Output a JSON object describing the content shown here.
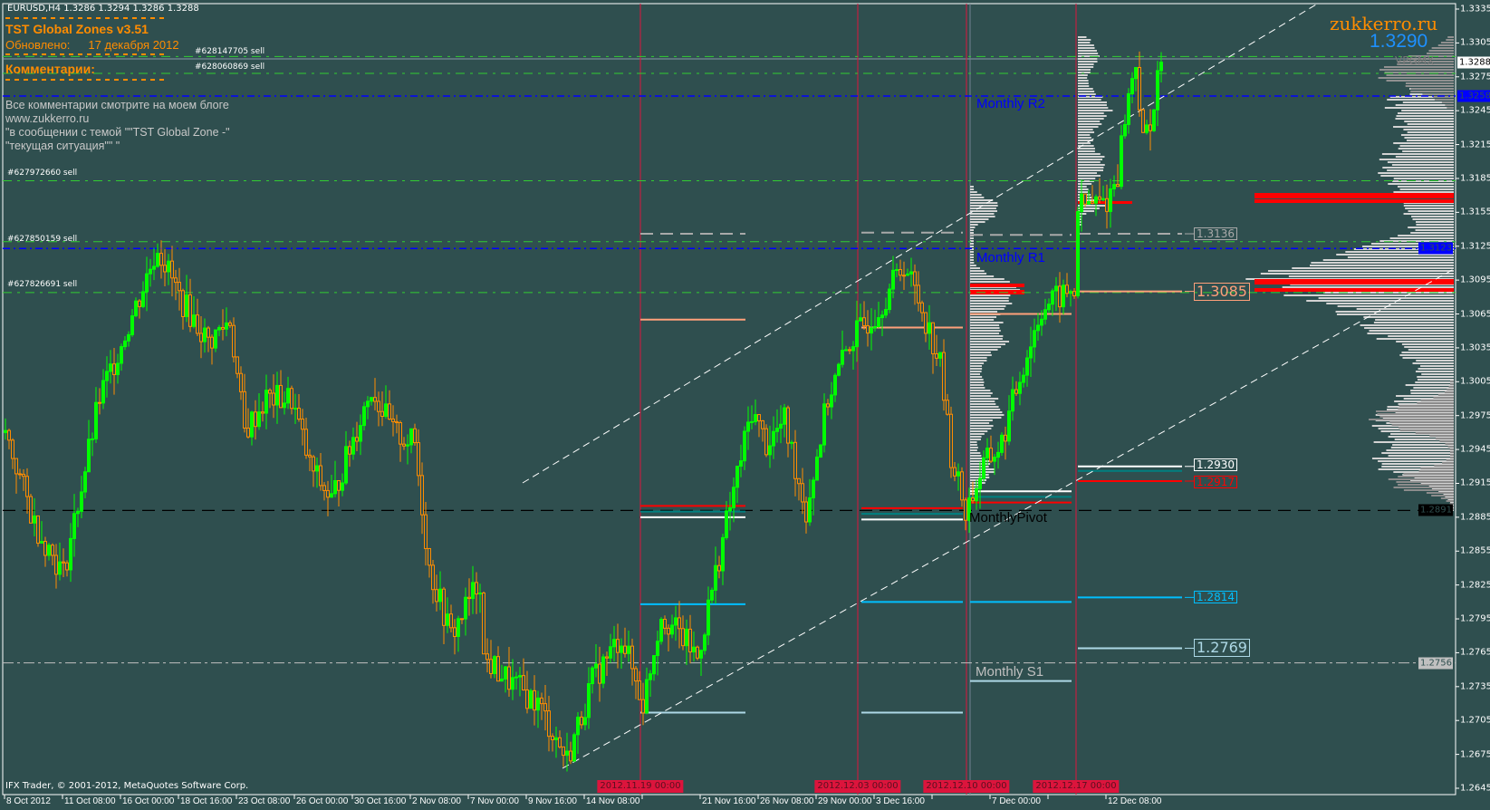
{
  "header": {
    "symbol_line": "EURUSD,H4  1.3286 1.3294 1.3286 1.3288"
  },
  "indicator": {
    "title": "TST Global Zones  v3.51",
    "updated_label": "Обновлено:",
    "updated_date": "17 декабря 2012",
    "comments_label": "Комментарии:",
    "notes": [
      "Все комментарии смотрите на моем блоге",
      "www.zukkerro.ru",
      "\"в сообщении с темой \"\"TST Global Zone -\"",
      "\"текущая ситуация\"\" \""
    ]
  },
  "orders": [
    {
      "label": "#628147705 sell",
      "price": 1.3293
    },
    {
      "label": "#628060869 sell",
      "price": 1.3278
    },
    {
      "label": "#627972660 sell",
      "price": 1.3183
    },
    {
      "label": "#627850159 sell",
      "price": 1.3129
    },
    {
      "label": "#627826691 sell",
      "price": 1.3084
    }
  ],
  "brand": {
    "site": "zukkerro.ru",
    "price": "1.3290",
    "tag": "VPGMX"
  },
  "copyright": "IFX Trader, © 2001-2012, MetaQuotes Software Corp.",
  "price_axis": {
    "max": 1.3335,
    "min": 1.2645,
    "ticks": [
      "1.3335",
      "1.3305",
      "1.3275",
      "1.3245",
      "1.3215",
      "1.3185",
      "1.3155",
      "1.3125",
      "1.3095",
      "1.3065",
      "1.3035",
      "1.3005",
      "1.2975",
      "1.2945",
      "1.2915",
      "1.2885",
      "1.2855",
      "1.2825",
      "1.2795",
      "1.2765",
      "1.2735",
      "1.2705",
      "1.2675",
      "1.2645"
    ]
  },
  "axis_markers": [
    {
      "label": "1.3288",
      "price": 1.3288,
      "bg": "#ffffff",
      "fg": "#000000"
    },
    {
      "label": "1.3258",
      "price": 1.3258,
      "bg": "#0000ff",
      "fg": "#2f4f4f"
    },
    {
      "label": "1.3123",
      "price": 1.3123,
      "bg": "#0000ff",
      "fg": "#2f4f4f"
    },
    {
      "label": "1.2891",
      "price": 1.2891,
      "bg": "#000000",
      "fg": "#2f4f4f"
    },
    {
      "label": "1.2756",
      "price": 1.2756,
      "bg": "#c0c0c0",
      "fg": "#2f4f4f"
    }
  ],
  "time_axis": {
    "labels": [
      "8 Oct 2012",
      "11 Oct 08:00",
      "16 Oct 00:00",
      "18 Oct 16:00",
      "23 Oct 08:00",
      "26 Oct 00:00",
      "30 Oct 16:00",
      "2 Nov 08:00",
      "7 Nov 00:00",
      "9 Nov 16:00",
      "14 Nov 08:00",
      "",
      "21 Nov 16:00",
      "26 Nov 08:00",
      "29 Nov 00:00",
      "3 Dec 16:00",
      "",
      "7 Dec 00:00",
      "",
      "12 Dec 08:00"
    ],
    "period_markers": [
      "2012.11.19 00:00",
      "2012.12.03 00:00",
      "2012.12.10 00:00",
      "2012.12.17 00:00"
    ]
  },
  "pivots": {
    "r2": "Monthly R2",
    "r1": "Monthly R1",
    "pivot": "MonthlyPivot",
    "s1": "Monthly S1"
  },
  "zone_labels": [
    {
      "label": "1.3136",
      "price": 1.3136,
      "color": "#a9a9a9",
      "big": false
    },
    {
      "label": "1.3085",
      "price": 1.3085,
      "color": "#ffa07a",
      "big": true
    },
    {
      "label": "1.2930",
      "price": 1.293,
      "color": "#ffffff",
      "big": false
    },
    {
      "label": "1.2917",
      "price": 1.2917,
      "color": "#ff0000",
      "big": false
    },
    {
      "label": "1.2814",
      "price": 1.2814,
      "color": "#00bfff",
      "big": false
    },
    {
      "label": "1.2769",
      "price": 1.2769,
      "color": "#add8e6",
      "big": true
    }
  ],
  "colors": {
    "background": "#2f4f4f",
    "bull": "#00ff00",
    "bear": "#ff8c00",
    "order_line": "#32cd32",
    "pivot_line": "#0000ff",
    "period": "#dc143c"
  },
  "price_path": [
    [
      0,
      1.296
    ],
    [
      8,
      1.288
    ],
    [
      16,
      1.2835
    ],
    [
      26,
      1.299
    ],
    [
      37,
      1.308
    ],
    [
      42,
      1.3125
    ],
    [
      48,
      1.308
    ],
    [
      56,
      1.304
    ],
    [
      62,
      1.306
    ],
    [
      66,
      1.296
    ],
    [
      72,
      1.299
    ],
    [
      79,
      1.299
    ],
    [
      84,
      1.293
    ],
    [
      90,
      1.29
    ],
    [
      101,
      1.3
    ],
    [
      107,
      1.296
    ],
    [
      113,
      1.295
    ],
    [
      117,
      1.284
    ],
    [
      123,
      1.278
    ],
    [
      131,
      1.283
    ],
    [
      132,
      1.276
    ],
    [
      139,
      1.274
    ],
    [
      147,
      1.272
    ],
    [
      155,
      1.267
    ],
    [
      162,
      1.274
    ],
    [
      170,
      1.278
    ],
    [
      176,
      1.272
    ],
    [
      181,
      1.28
    ],
    [
      189,
      1.277
    ],
    [
      191,
      1.276
    ],
    [
      199,
      1.288
    ],
    [
      206,
      1.298
    ],
    [
      210,
      1.295
    ],
    [
      215,
      1.297
    ],
    [
      221,
      1.289
    ],
    [
      227,
      1.299
    ],
    [
      233,
      1.304
    ],
    [
      241,
      1.307
    ],
    [
      248,
      1.311
    ],
    [
      253,
      1.307
    ],
    [
      258,
      1.302
    ],
    [
      261,
      1.294
    ],
    [
      265,
      1.289
    ],
    [
      270,
      1.293
    ],
    [
      275,
      1.295
    ],
    [
      280,
      1.301
    ],
    [
      286,
      1.307
    ],
    [
      291,
      1.308
    ],
    [
      295,
      1.3085
    ],
    [
      296,
      1.316
    ],
    [
      304,
      1.3165
    ],
    [
      307,
      1.319
    ],
    [
      309,
      1.324
    ],
    [
      312,
      1.329
    ],
    [
      314,
      1.3215
    ],
    [
      317,
      1.325
    ],
    [
      319,
      1.3288
    ]
  ]
}
